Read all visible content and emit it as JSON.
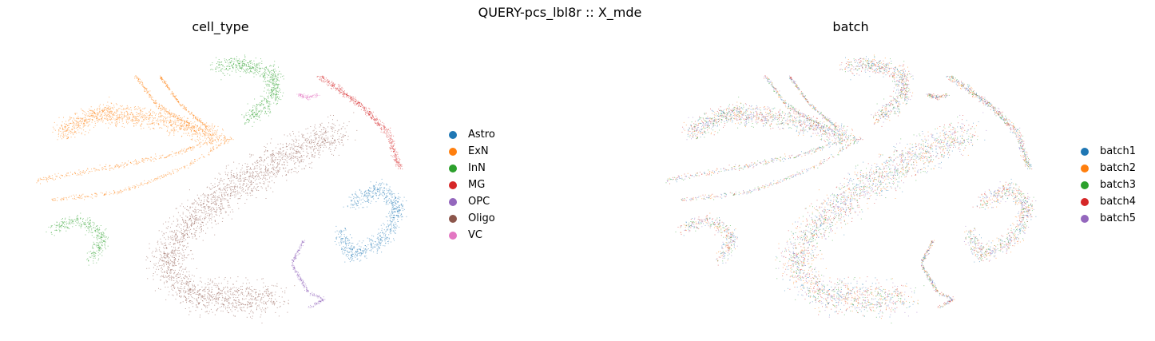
{
  "figure": {
    "suptitle": "QUERY-pcs_lbl8r :: X_mde"
  },
  "chart_data": [
    {
      "type": "scatter",
      "title": "cell_type",
      "xlabel": "",
      "ylabel": "",
      "grid": false,
      "axes_visible": false,
      "legend_position": "right",
      "legend": [
        {
          "name": "Astro",
          "color": "#1f77b4"
        },
        {
          "name": "ExN",
          "color": "#ff7f0e"
        },
        {
          "name": "InN",
          "color": "#2ca02c"
        },
        {
          "name": "MG",
          "color": "#d62728"
        },
        {
          "name": "OPC",
          "color": "#9467bd"
        },
        {
          "name": "Oligo",
          "color": "#8c564b"
        },
        {
          "name": "VC",
          "color": "#e377c2"
        }
      ]
    },
    {
      "type": "scatter",
      "title": "batch",
      "xlabel": "",
      "ylabel": "",
      "grid": false,
      "axes_visible": false,
      "legend_position": "right",
      "legend": [
        {
          "name": "batch1",
          "color": "#1f77b4"
        },
        {
          "name": "batch2",
          "color": "#ff7f0e"
        },
        {
          "name": "batch3",
          "color": "#2ca02c"
        },
        {
          "name": "batch4",
          "color": "#d62728"
        },
        {
          "name": "batch5",
          "color": "#9467bd"
        }
      ]
    }
  ]
}
